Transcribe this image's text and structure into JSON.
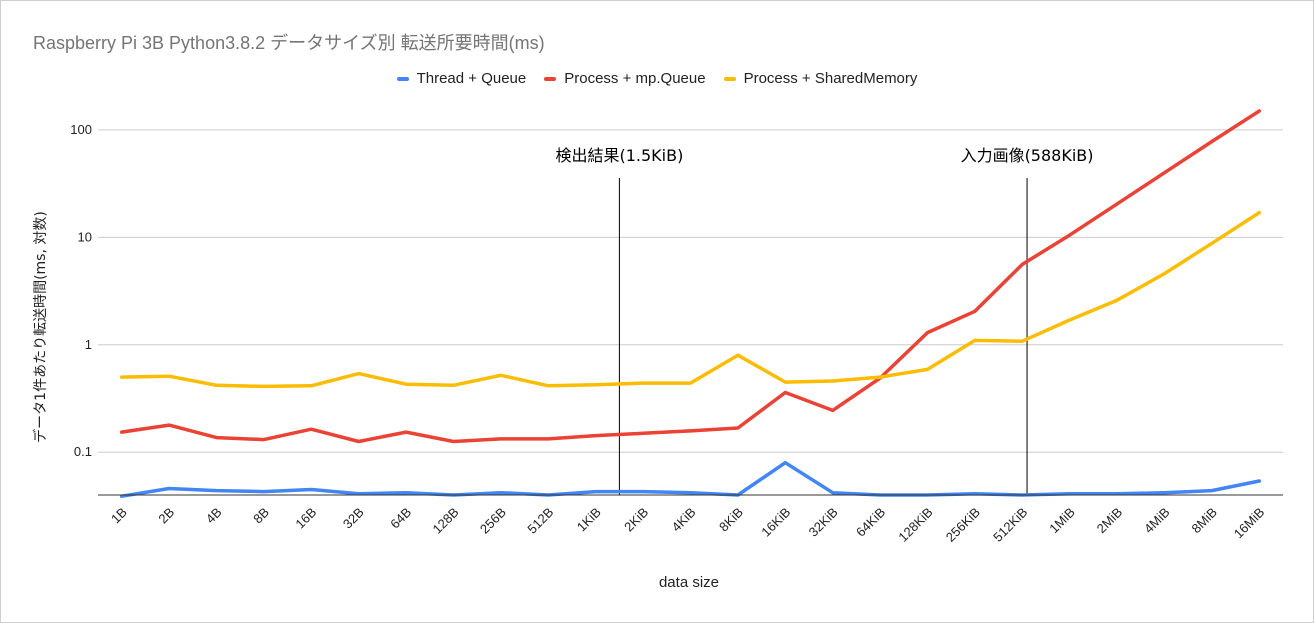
{
  "chart_data": {
    "type": "line",
    "title": "Raspberry Pi 3B Python3.8.2 データサイズ別 転送所要時間(ms)",
    "xlabel": "data size",
    "ylabel": "データ1件あたり転送時間(ms, 対数)",
    "y_scale": "log",
    "ylim": [
      0.04,
      150
    ],
    "y_ticks": [
      0.1,
      1,
      10,
      100
    ],
    "y_tick_labels": [
      "0.1",
      "1",
      "10",
      "100"
    ],
    "grid": true,
    "legend_position": "top",
    "categories": [
      "1B",
      "2B",
      "4B",
      "8B",
      "16B",
      "32B",
      "64B",
      "128B",
      "256B",
      "512B",
      "1KiB",
      "2KiB",
      "4KiB",
      "8KiB",
      "16KiB",
      "32KiB",
      "64KiB",
      "128KiB",
      "256KiB",
      "512KiB",
      "1MiB",
      "2MiB",
      "4MiB",
      "8MiB",
      "16MiB"
    ],
    "series": [
      {
        "name": "Thread + Queue",
        "color": "#4285f4",
        "values": [
          0.039,
          0.046,
          0.044,
          0.043,
          0.045,
          0.041,
          0.042,
          0.04,
          0.042,
          0.04,
          0.043,
          0.043,
          0.042,
          0.04,
          0.08,
          0.042,
          0.04,
          0.04,
          0.041,
          0.04,
          0.041,
          0.041,
          0.042,
          0.044,
          0.054
        ]
      },
      {
        "name": "Process + mp.Queue",
        "color": "#ea4335",
        "values": [
          0.154,
          0.179,
          0.137,
          0.131,
          0.164,
          0.126,
          0.154,
          0.126,
          0.133,
          0.133,
          0.143,
          0.15,
          0.158,
          0.168,
          0.36,
          0.245,
          0.49,
          1.3,
          2.05,
          5.6,
          10.5,
          20.5,
          40.0,
          78.0,
          150.0
        ]
      },
      {
        "name": "Process + SharedMemory",
        "color": "#fbbc04",
        "values": [
          0.5,
          0.51,
          0.42,
          0.41,
          0.415,
          0.54,
          0.43,
          0.42,
          0.52,
          0.415,
          0.425,
          0.44,
          0.44,
          0.8,
          0.45,
          0.46,
          0.5,
          0.59,
          1.1,
          1.08,
          1.7,
          2.6,
          4.6,
          8.8,
          17.0
        ]
      }
    ],
    "annotations": [
      {
        "label": "検出結果(1.5KiB)",
        "at_category_index": 10.5
      },
      {
        "label": "入力画像(588KiB)",
        "at_category_index": 19.1
      }
    ]
  }
}
